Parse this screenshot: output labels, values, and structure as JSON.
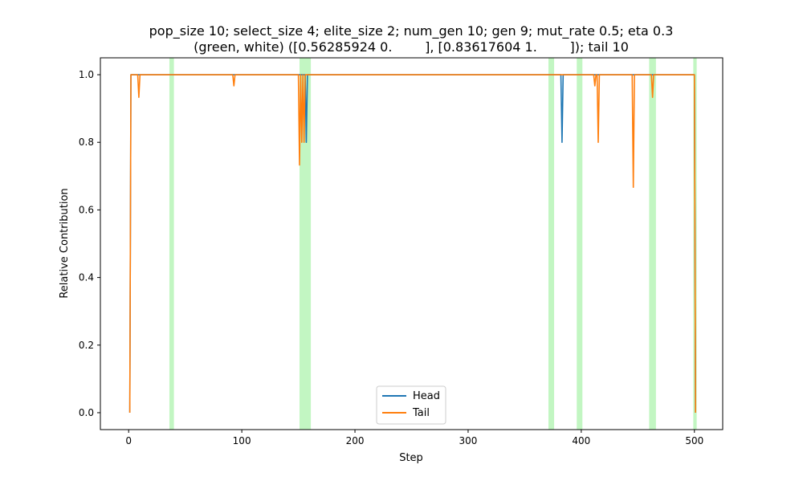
{
  "chart_data": {
    "type": "line",
    "title_lines": [
      "pop_size 10; select_size 4; elite_size 2; num_gen 10; gen 9; mut_rate 0.5; eta 0.3",
      "(green, white) ([0.56285924 0.        ], [0.83617604 1.        ]); tail 10"
    ],
    "xlabel": "Step",
    "ylabel": "Relative Contribution",
    "xlim": [
      -25,
      525
    ],
    "ylim": [
      -0.05,
      1.05
    ],
    "xticks": [
      0,
      100,
      200,
      300,
      400,
      500
    ],
    "yticks": [
      0.0,
      0.2,
      0.4,
      0.6,
      0.8,
      1.0
    ],
    "xtick_labels": [
      "0",
      "100",
      "200",
      "300",
      "400",
      "500"
    ],
    "ytick_labels": [
      "0.0",
      "0.2",
      "0.4",
      "0.6",
      "0.8",
      "1.0"
    ],
    "legend_position": "bottom-center",
    "highlight_color": "#90ee90",
    "highlight_spans": [
      [
        36,
        40
      ],
      [
        151,
        161
      ],
      [
        371,
        376
      ],
      [
        396,
        401
      ],
      [
        460,
        466
      ],
      [
        499,
        502
      ]
    ],
    "series": [
      {
        "name": "Head",
        "color": "#1f77b4",
        "x": [
          1,
          2,
          3,
          155,
          156,
          157,
          158,
          382,
          383,
          384,
          500,
          501
        ],
        "y": [
          0.0,
          1.0,
          1.0,
          1.0,
          1.0,
          0.8,
          1.0,
          1.0,
          0.8,
          1.0,
          1.0,
          0.0
        ]
      },
      {
        "name": "Tail",
        "color": "#ff7f0e",
        "x": [
          1,
          2,
          3,
          8,
          9,
          10,
          92,
          93,
          94,
          150,
          151,
          152,
          153,
          154,
          155,
          156,
          157,
          411,
          412,
          413,
          414,
          415,
          416,
          417,
          445,
          446,
          447,
          448,
          462,
          463,
          464,
          465,
          500,
          501
        ],
        "y": [
          0.0,
          1.0,
          1.0,
          1.0,
          0.933,
          1.0,
          1.0,
          0.967,
          1.0,
          1.0,
          0.733,
          1.0,
          0.8,
          1.0,
          0.8,
          1.0,
          1.0,
          1.0,
          0.967,
          1.0,
          1.0,
          0.8,
          1.0,
          1.0,
          1.0,
          0.667,
          1.0,
          1.0,
          1.0,
          0.933,
          1.0,
          1.0,
          1.0,
          0.0
        ]
      }
    ]
  }
}
